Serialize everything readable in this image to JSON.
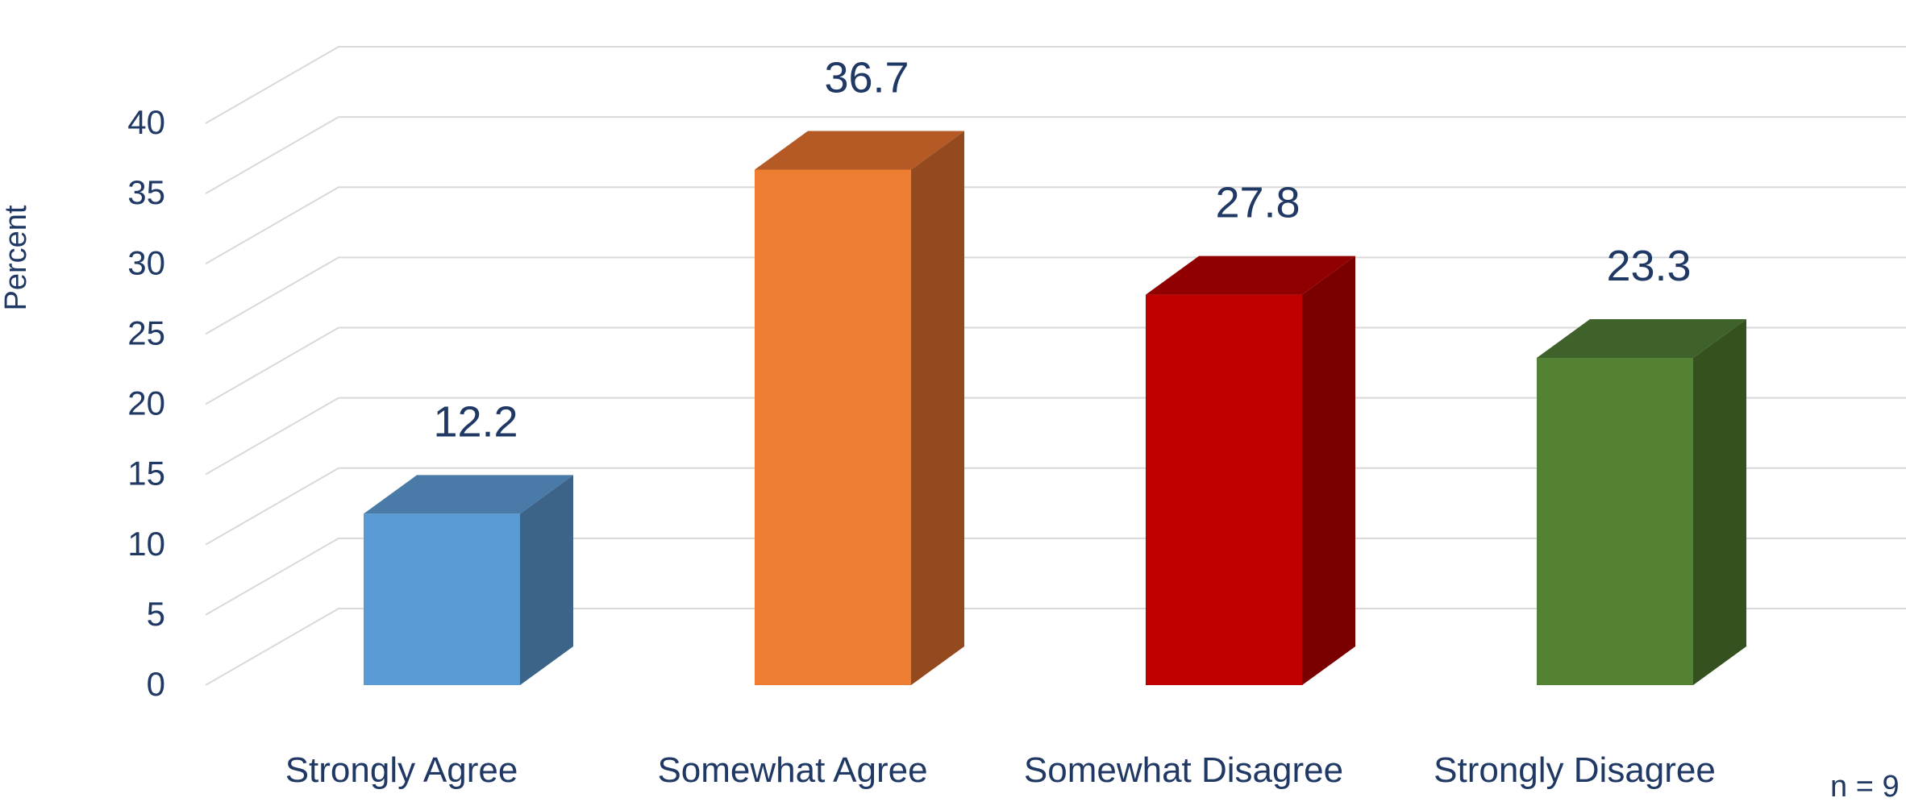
{
  "chart_data": {
    "type": "bar",
    "categories": [
      "Strongly Agree",
      "Somewhat Agree",
      "Somewhat Disagree",
      "Strongly Disagree"
    ],
    "values": [
      12.2,
      36.7,
      27.8,
      23.3
    ],
    "data_labels": [
      "12.2",
      "36.7",
      "27.8",
      "23.3"
    ],
    "ylabel": "Percent",
    "xlabel": "",
    "ylim": [
      0,
      40
    ],
    "yticks": [
      0,
      5,
      10,
      15,
      20,
      25,
      30,
      35,
      40
    ],
    "grid": true,
    "style": "3d-bar",
    "annotation": "n = 9",
    "colors": {
      "front": [
        "#5b9bd5",
        "#ed7d31",
        "#c00000",
        "#548235"
      ],
      "top": [
        "#4a7aa8",
        "#b55a24",
        "#900000",
        "#3f612a"
      ],
      "side": [
        "#3b6488",
        "#944a1e",
        "#7a0000",
        "#35511f"
      ],
      "text": "#1f3864",
      "grid": "#d9d9d9"
    }
  }
}
